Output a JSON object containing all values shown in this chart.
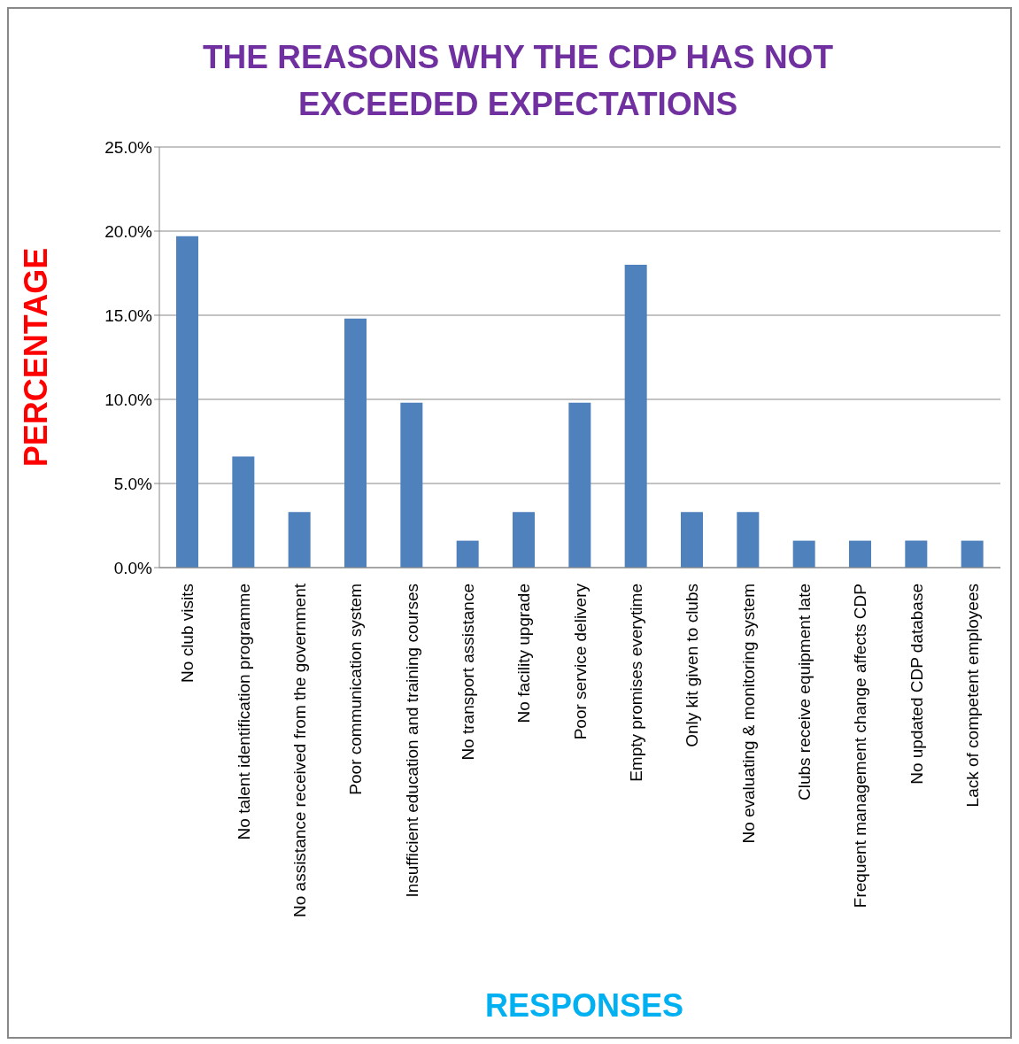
{
  "chart_data": {
    "type": "bar",
    "title": "THE REASONS WHY THE CDP HAS NOT EXCEEDED EXPECTATIONS",
    "xlabel": "RESPONSES",
    "ylabel": "PERCENTAGE",
    "categories": [
      "No club visits",
      "No talent identification programme",
      "No assistance received from the government",
      "Poor communication system",
      "Insufficient education and training courses",
      "No transport assistance",
      "No facility upgrade",
      "Poor service delivery",
      "Empty promises everytime",
      "Only kit given to clubs",
      "No evaluating & monitoring system",
      "Clubs receive equipment late",
      "Frequent management change affects CDP",
      "No updated CDP database",
      "Lack of competent employees"
    ],
    "values": [
      19.7,
      6.6,
      3.3,
      14.8,
      9.8,
      1.6,
      3.3,
      9.8,
      18.0,
      3.3,
      3.3,
      1.6,
      1.6,
      1.6,
      1.6
    ],
    "color": "#4f81bd",
    "ylim": [
      0,
      25
    ],
    "yticks": [
      {
        "value": 0,
        "label": "0.0%"
      },
      {
        "value": 5,
        "label": "5.0%"
      },
      {
        "value": 10,
        "label": "10.0%"
      },
      {
        "value": 15,
        "label": "15.0%"
      },
      {
        "value": 20,
        "label": "20.0%"
      },
      {
        "value": 25,
        "label": "25.0%"
      }
    ],
    "grid": "y",
    "legend": false
  }
}
